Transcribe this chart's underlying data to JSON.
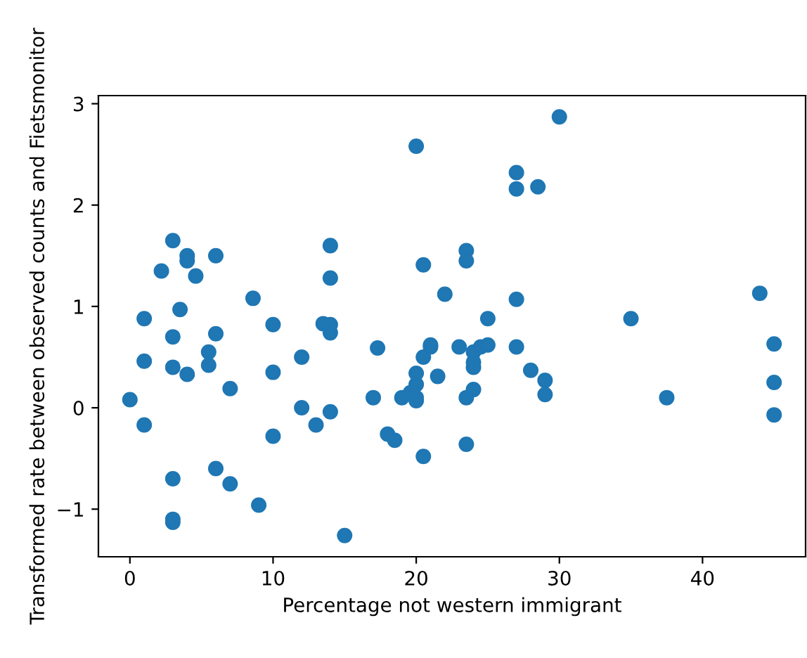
{
  "chart_data": {
    "type": "scatter",
    "xlabel": "Percentage not western immigrant",
    "ylabel": "Transformed rate between observed counts and Fietsmonitor",
    "x": [
      0,
      1,
      1,
      1,
      2.2,
      3,
      3,
      3,
      3,
      3,
      3,
      3.5,
      4,
      4,
      4,
      4.6,
      5.5,
      5.5,
      6,
      6,
      6,
      7,
      7,
      8.6,
      9,
      10,
      10,
      10,
      12,
      12,
      13,
      13.5,
      14,
      14,
      14,
      14,
      14,
      15,
      17,
      17.3,
      18,
      18.5,
      19,
      19.6,
      20,
      20,
      20,
      20,
      20,
      20.5,
      20.5,
      20.5,
      21,
      21,
      21.5,
      22,
      23,
      23.5,
      23.5,
      23.5,
      23.5,
      24,
      24,
      24,
      24,
      24.5,
      25,
      25,
      27,
      27,
      27,
      27,
      28,
      28.5,
      29,
      29,
      30,
      35,
      37.5,
      44,
      45,
      45,
      45
    ],
    "values": [
      0.08,
      0.88,
      0.46,
      -0.17,
      1.35,
      1.65,
      0.7,
      0.4,
      -0.7,
      -1.1,
      -1.13,
      0.97,
      1.5,
      1.45,
      0.33,
      1.3,
      0.55,
      0.42,
      1.5,
      0.73,
      -0.6,
      0.19,
      -0.75,
      1.08,
      -0.96,
      0.82,
      0.35,
      -0.28,
      0.5,
      0,
      -0.17,
      0.83,
      1.6,
      1.28,
      0.82,
      0.74,
      -0.04,
      -1.26,
      0.1,
      0.59,
      -0.26,
      -0.32,
      0.1,
      0.15,
      2.58,
      0.34,
      0.23,
      0.07,
      0.1,
      1.41,
      0.5,
      -0.48,
      0.6,
      0.62,
      0.31,
      1.12,
      0.6,
      1.55,
      1.45,
      0.1,
      -0.36,
      0.55,
      0.4,
      0.45,
      0.18,
      0.6,
      0.88,
      0.62,
      2.32,
      2.16,
      1.07,
      0.6,
      0.37,
      2.18,
      0.27,
      0.13,
      2.87,
      0.88,
      0.1,
      1.13,
      0.63,
      0.25,
      -0.07
    ],
    "color": "#1f77b4",
    "marker": "circle",
    "xlim": [
      -2.2,
      47.2
    ],
    "ylim": [
      -1.47,
      3.08
    ],
    "xticks": [
      0,
      10,
      20,
      30,
      40
    ],
    "yticks": [
      -1,
      0,
      1,
      2,
      3
    ]
  }
}
